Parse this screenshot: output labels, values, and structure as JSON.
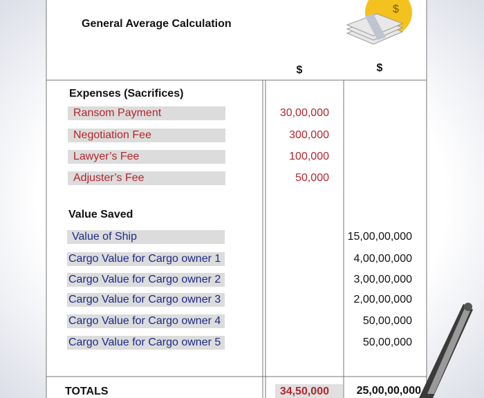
{
  "title": "General Average Calculation",
  "columns": [
    "$",
    "$"
  ],
  "expenses": {
    "heading": "Expenses (Sacrifices)",
    "rows": [
      {
        "label": "Ransom Payment",
        "amount": "30,00,000"
      },
      {
        "label": "Negotiation Fee",
        "amount": "300,000"
      },
      {
        "label": "Lawyer’s Fee",
        "amount": "100,000"
      },
      {
        "label": "Adjuster’s Fee",
        "amount": "50,000"
      }
    ]
  },
  "value_saved": {
    "heading": "Value Saved",
    "rows": [
      {
        "label": "Value of Ship",
        "amount": "15,00,00,000"
      },
      {
        "label": "Cargo Value for Cargo owner 1",
        "amount": "4,00,00,000"
      },
      {
        "label": "Cargo Value for Cargo owner 2",
        "amount": "3,00,00,000"
      },
      {
        "label": "Cargo Value for Cargo owner 3",
        "amount": "2,00,00,000"
      },
      {
        "label": "Cargo Value for Cargo owner 4",
        "amount": "50,00,000"
      },
      {
        "label": "Cargo Value for Cargo owner 5",
        "amount": "50,00,000"
      }
    ]
  },
  "totals": {
    "label": "TOTALS",
    "expenses": "34,50,000",
    "value_saved": "25,00,00,000"
  }
}
